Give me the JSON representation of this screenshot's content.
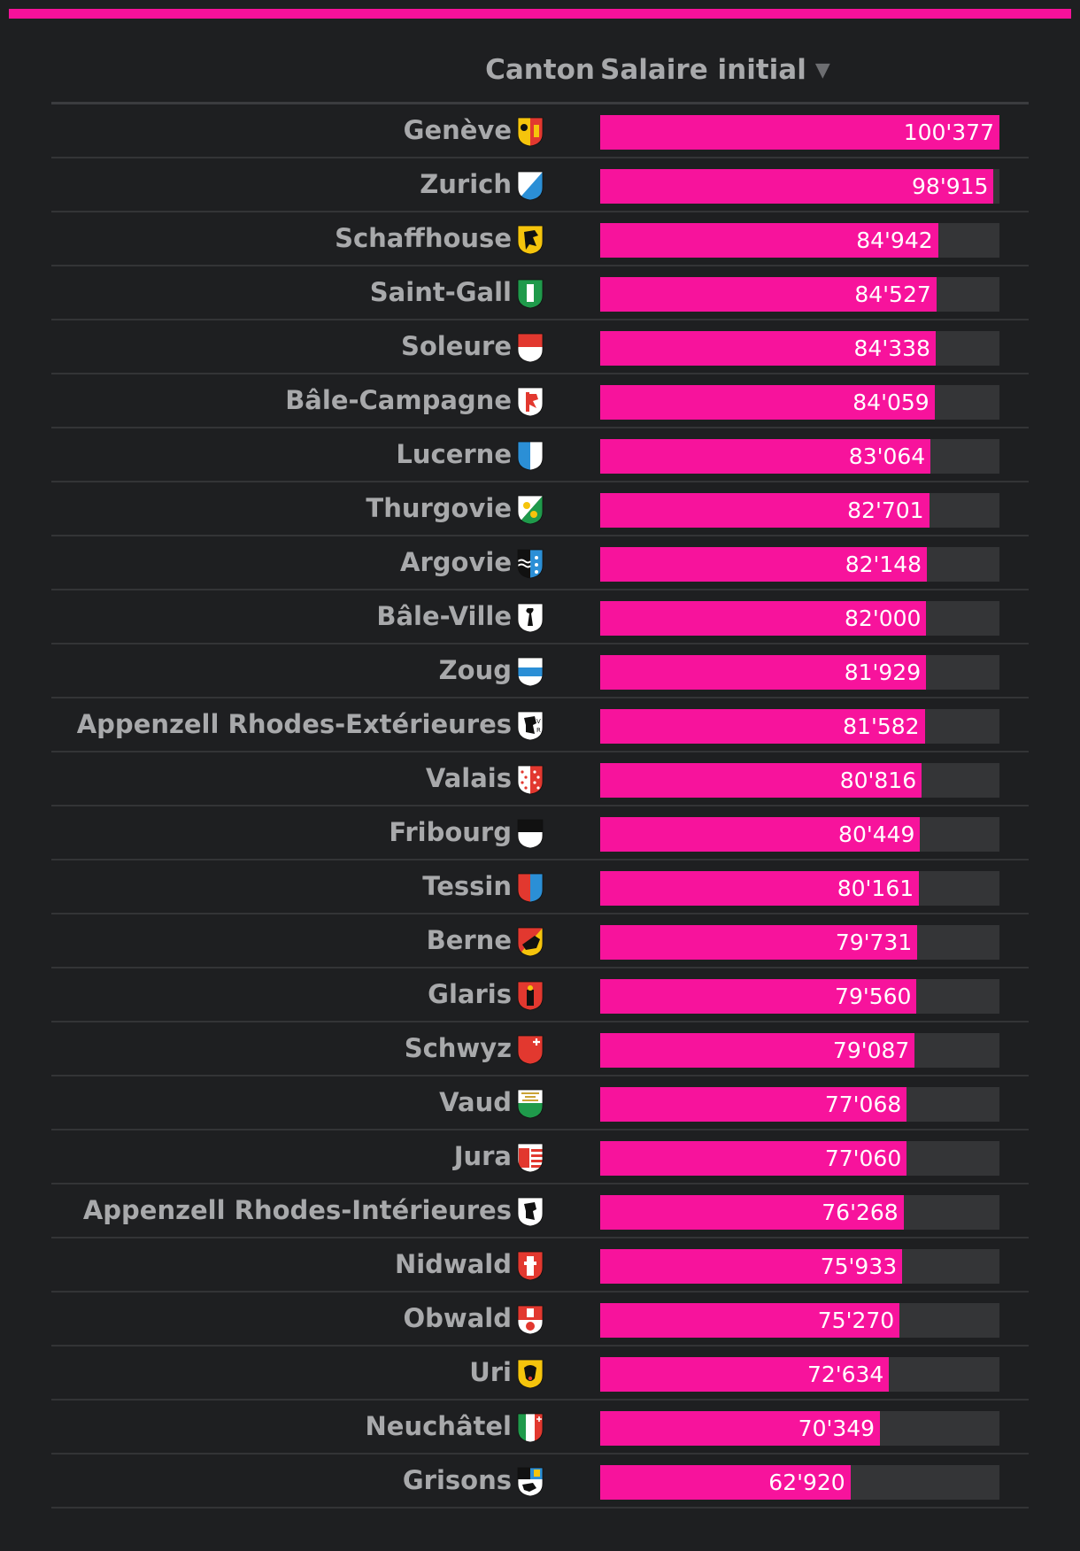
{
  "header": {
    "canton_label": "Canton",
    "salary_label": "Salaire initial",
    "sort_icon": "▼"
  },
  "colors": {
    "bar": "#f7139c",
    "track": "#343537",
    "accent_line": "#f7119a",
    "background": "#1e1f21"
  },
  "chart_data": {
    "type": "bar",
    "orientation": "horizontal",
    "xlim": [
      0,
      100377
    ],
    "categories": [
      "Genève",
      "Zurich",
      "Schaffhouse",
      "Saint-Gall",
      "Soleure",
      "Bâle-Campagne",
      "Lucerne",
      "Thurgovie",
      "Argovie",
      "Bâle-Ville",
      "Zoug",
      "Appenzell Rhodes-Extérieures",
      "Valais",
      "Fribourg",
      "Tessin",
      "Berne",
      "Glaris",
      "Schwyz",
      "Vaud",
      "Jura",
      "Appenzell Rhodes-Intérieures",
      "Nidwald",
      "Obwald",
      "Uri",
      "Neuchâtel",
      "Grisons"
    ],
    "values": [
      100377,
      98915,
      84942,
      84527,
      84338,
      84059,
      83064,
      82701,
      82148,
      82000,
      81929,
      81582,
      80816,
      80449,
      80161,
      79731,
      79560,
      79087,
      77068,
      77060,
      76268,
      75933,
      75270,
      72634,
      70349,
      62920
    ],
    "labels": [
      "100'377",
      "98'915",
      "84'942",
      "84'527",
      "84'338",
      "84'059",
      "83'064",
      "82'701",
      "82'148",
      "82'000",
      "81'929",
      "81'582",
      "80'816",
      "80'449",
      "80'161",
      "79'731",
      "79'560",
      "79'087",
      "77'068",
      "77'060",
      "76'268",
      "75'933",
      "75'270",
      "72'634",
      "70'349",
      "62'920"
    ],
    "flags": [
      "geneve-flag-icon",
      "zurich-flag-icon",
      "schaffhouse-flag-icon",
      "saint-gall-flag-icon",
      "soleure-flag-icon",
      "bale-campagne-flag-icon",
      "lucerne-flag-icon",
      "thurgovie-flag-icon",
      "argovie-flag-icon",
      "bale-ville-flag-icon",
      "zoug-flag-icon",
      "appenzell-ext-flag-icon",
      "valais-flag-icon",
      "fribourg-flag-icon",
      "tessin-flag-icon",
      "berne-flag-icon",
      "glaris-flag-icon",
      "schwyz-flag-icon",
      "vaud-flag-icon",
      "jura-flag-icon",
      "appenzell-int-flag-icon",
      "nidwald-flag-icon",
      "obwald-flag-icon",
      "uri-flag-icon",
      "neuchatel-flag-icon",
      "grisons-flag-icon"
    ]
  }
}
